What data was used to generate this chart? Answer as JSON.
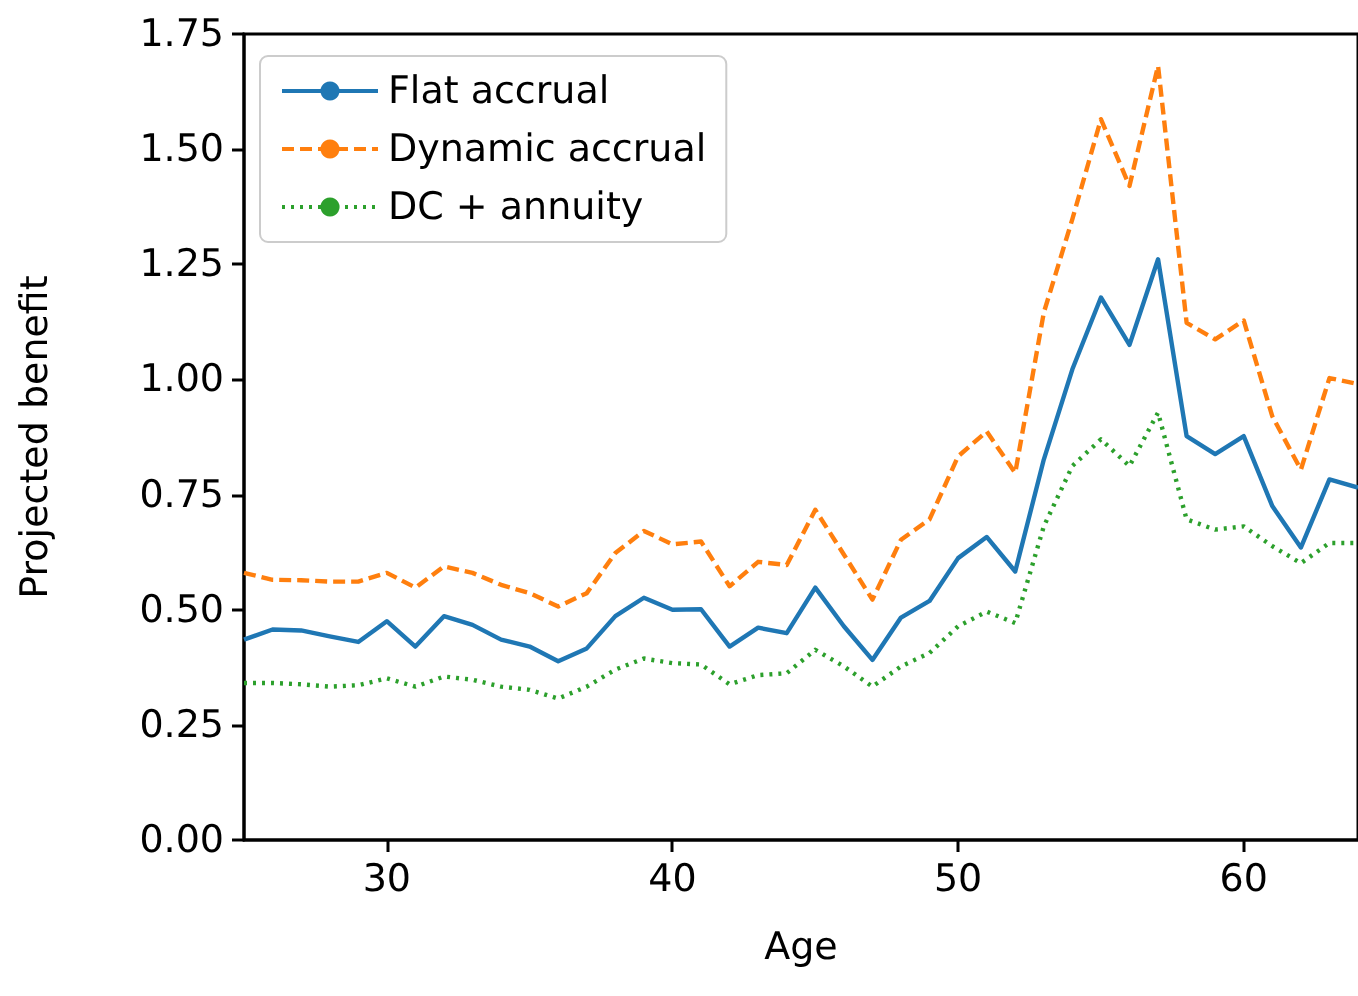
{
  "chart_data": {
    "type": "line",
    "xlabel": "Age",
    "ylabel": "Projected benefit",
    "x": [
      25,
      26,
      27,
      28,
      29,
      30,
      31,
      32,
      33,
      34,
      35,
      36,
      37,
      38,
      39,
      40,
      41,
      42,
      43,
      44,
      45,
      46,
      47,
      48,
      49,
      50,
      51,
      52,
      53,
      54,
      55,
      56,
      57,
      58,
      59,
      60,
      61,
      62,
      63,
      64
    ],
    "series": [
      {
        "name": "Flat accrual",
        "color": "#1f77b4",
        "line_style": "solid",
        "values": [
          0.435,
          0.457,
          0.455,
          0.442,
          0.43,
          0.475,
          0.42,
          0.486,
          0.467,
          0.435,
          0.42,
          0.388,
          0.416,
          0.486,
          0.526,
          0.5,
          0.501,
          0.42,
          0.461,
          0.449,
          0.548,
          0.464,
          0.391,
          0.483,
          0.519,
          0.612,
          0.658,
          0.583,
          0.826,
          1.022,
          1.178,
          1.075,
          1.261,
          0.877,
          0.838,
          0.877,
          0.725,
          0.635,
          0.783,
          0.765
        ]
      },
      {
        "name": "Dynamic accrual",
        "color": "#ff7f0e",
        "line_style": "dashed",
        "values": [
          0.58,
          0.565,
          0.564,
          0.561,
          0.561,
          0.58,
          0.548,
          0.594,
          0.58,
          0.554,
          0.536,
          0.507,
          0.536,
          0.623,
          0.671,
          0.642,
          0.648,
          0.551,
          0.604,
          0.597,
          0.717,
          0.62,
          0.522,
          0.652,
          0.696,
          0.833,
          0.887,
          0.797,
          1.145,
          1.348,
          1.565,
          1.42,
          1.681,
          1.123,
          1.087,
          1.128,
          0.92,
          0.804,
          1.003,
          0.99
        ]
      },
      {
        "name": "DC + annuity",
        "color": "#2ca02c",
        "line_style": "dotted",
        "values": [
          0.341,
          0.341,
          0.338,
          0.333,
          0.336,
          0.351,
          0.333,
          0.355,
          0.348,
          0.333,
          0.326,
          0.307,
          0.333,
          0.37,
          0.394,
          0.384,
          0.381,
          0.338,
          0.358,
          0.362,
          0.413,
          0.377,
          0.333,
          0.377,
          0.406,
          0.464,
          0.496,
          0.471,
          0.681,
          0.812,
          0.87,
          0.812,
          0.928,
          0.696,
          0.674,
          0.681,
          0.638,
          0.601,
          0.645,
          0.645
        ]
      }
    ],
    "xlim": [
      25,
      64
    ],
    "xticks": [
      30,
      40,
      50,
      60
    ],
    "ylim": [
      0,
      1.75
    ],
    "yticks": [
      {
        "value": 0,
        "label": "0.00"
      },
      {
        "value": 0.25,
        "label": "0.25"
      },
      {
        "value": 0.5,
        "label": "0.50"
      },
      {
        "value": 0.75,
        "label": "0.75"
      },
      {
        "value": 1,
        "label": "1.00"
      },
      {
        "value": 1.25,
        "label": "1.25"
      },
      {
        "value": 1.5,
        "label": "1.50"
      },
      {
        "value": 1.75,
        "label": "1.75"
      }
    ],
    "grid": false,
    "legend": "top left",
    "marker": "none"
  }
}
